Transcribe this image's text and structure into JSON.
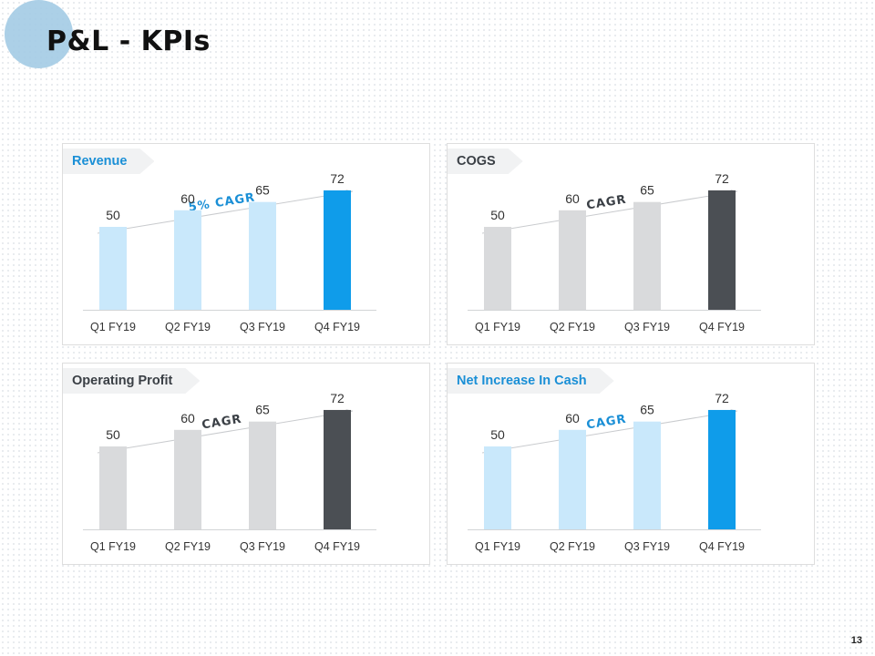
{
  "slide": {
    "title": "P&L - KPIs",
    "page_number": "13"
  },
  "colors": {
    "blue_light": "#c9e8fb",
    "blue_strong": "#0f9cea",
    "gray_light": "#d9dadc",
    "gray_dark": "#4b4f54",
    "accent_text": "#1a8fd6",
    "dark_text": "#3a3f45"
  },
  "panels": [
    {
      "name": "revenue",
      "tag": "Revenue",
      "tag_style": "accent",
      "cagr_label": "5% CAGR",
      "cagr_style": "accent",
      "theme": "blue"
    },
    {
      "name": "cogs",
      "tag": "COGS",
      "tag_style": "dark",
      "cagr_label": "CAGR",
      "cagr_style": "dark",
      "theme": "gray"
    },
    {
      "name": "operating-profit",
      "tag": "Operating Profit",
      "tag_style": "dark",
      "cagr_label": "CAGR",
      "cagr_style": "dark",
      "theme": "gray"
    },
    {
      "name": "net-increase-in-cash",
      "tag": "Net Increase In Cash",
      "tag_style": "accent",
      "cagr_label": "CAGR",
      "cagr_style": "accent",
      "theme": "blue"
    }
  ],
  "chart_data": [
    {
      "type": "bar",
      "title": "Revenue",
      "categories": [
        "Q1 FY19",
        "Q2 FY19",
        "Q3 FY19",
        "Q4 FY19"
      ],
      "values": [
        50,
        60,
        65,
        72
      ],
      "annotation": "5% CAGR",
      "ylim": [
        0,
        100
      ]
    },
    {
      "type": "bar",
      "title": "COGS",
      "categories": [
        "Q1 FY19",
        "Q2 FY19",
        "Q3 FY19",
        "Q4 FY19"
      ],
      "values": [
        50,
        60,
        65,
        72
      ],
      "annotation": "CAGR",
      "ylim": [
        0,
        100
      ]
    },
    {
      "type": "bar",
      "title": "Operating Profit",
      "categories": [
        "Q1 FY19",
        "Q2 FY19",
        "Q3 FY19",
        "Q4 FY19"
      ],
      "values": [
        50,
        60,
        65,
        72
      ],
      "annotation": "CAGR",
      "ylim": [
        0,
        100
      ]
    },
    {
      "type": "bar",
      "title": "Net Increase In Cash",
      "categories": [
        "Q1 FY19",
        "Q2 FY19",
        "Q3 FY19",
        "Q4 FY19"
      ],
      "values": [
        50,
        60,
        65,
        72
      ],
      "annotation": "CAGR",
      "ylim": [
        0,
        100
      ]
    }
  ]
}
